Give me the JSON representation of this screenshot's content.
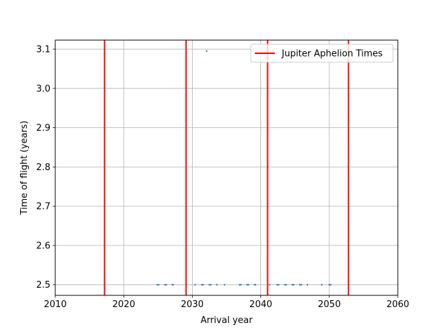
{
  "chart_data": {
    "type": "scatter",
    "xlabel": "Arrival year",
    "ylabel": "Time of flight (years)",
    "xlim": [
      2010,
      2060
    ],
    "ylim": [
      2.473,
      3.123
    ],
    "xticks": [
      2010,
      2020,
      2030,
      2040,
      2050,
      2060
    ],
    "yticks": [
      2.5,
      2.6,
      2.7,
      2.8,
      2.9,
      3.0,
      3.1
    ],
    "xtick_labels": [
      "2010",
      "2020",
      "2030",
      "2040",
      "2050",
      "2060"
    ],
    "ytick_labels": [
      "2.5",
      "2.6",
      "2.7",
      "2.8",
      "2.9",
      "3.0",
      "3.1"
    ],
    "grid": true,
    "legend_position": "top-right",
    "series": [
      {
        "kind": "scatter",
        "color": "#1f77b4",
        "points": [
          {
            "x": 2024.9,
            "y": 2.5
          },
          {
            "x": 2025.1,
            "y": 2.5
          },
          {
            "x": 2026.0,
            "y": 2.5
          },
          {
            "x": 2026.2,
            "y": 2.5
          },
          {
            "x": 2027.1,
            "y": 2.5
          },
          {
            "x": 2027.2,
            "y": 2.5
          },
          {
            "x": 2030.4,
            "y": 2.5
          },
          {
            "x": 2031.4,
            "y": 2.5
          },
          {
            "x": 2031.6,
            "y": 2.5
          },
          {
            "x": 2032.1,
            "y": 3.095
          },
          {
            "x": 2032.5,
            "y": 2.5
          },
          {
            "x": 2032.7,
            "y": 2.5
          },
          {
            "x": 2033.6,
            "y": 2.5
          },
          {
            "x": 2034.7,
            "y": 2.5
          },
          {
            "x": 2036.9,
            "y": 2.5
          },
          {
            "x": 2037.1,
            "y": 2.5
          },
          {
            "x": 2038.0,
            "y": 2.5
          },
          {
            "x": 2038.2,
            "y": 2.5
          },
          {
            "x": 2039.1,
            "y": 2.5
          },
          {
            "x": 2039.2,
            "y": 2.5
          },
          {
            "x": 2041.3,
            "y": 2.5
          },
          {
            "x": 2042.4,
            "y": 2.5
          },
          {
            "x": 2042.6,
            "y": 2.5
          },
          {
            "x": 2043.5,
            "y": 2.5
          },
          {
            "x": 2043.7,
            "y": 2.5
          },
          {
            "x": 2044.6,
            "y": 2.5
          },
          {
            "x": 2044.8,
            "y": 2.5
          },
          {
            "x": 2045.7,
            "y": 2.5
          },
          {
            "x": 2045.9,
            "y": 2.5
          },
          {
            "x": 2046.8,
            "y": 2.5
          },
          {
            "x": 2048.9,
            "y": 2.5
          },
          {
            "x": 2050.0,
            "y": 2.5
          },
          {
            "x": 2050.2,
            "y": 2.5
          }
        ]
      },
      {
        "name": "Jupiter Aphelion Times",
        "kind": "vlines",
        "color": "#ff0000",
        "x": [
          2017.2,
          2029.1,
          2041.0,
          2052.8
        ]
      }
    ]
  }
}
